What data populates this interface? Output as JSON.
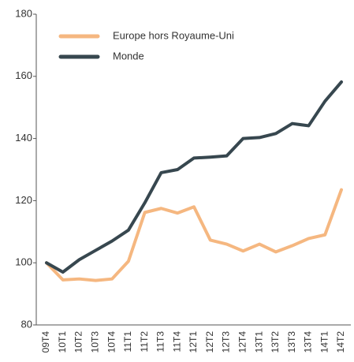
{
  "chart_data": {
    "type": "line",
    "categories": [
      "09T4",
      "10T1",
      "10T2",
      "10T3",
      "10T4",
      "11T1",
      "11T2",
      "11T3",
      "11T4",
      "12T1",
      "12T2",
      "12T3",
      "12T4",
      "13T1",
      "13T2",
      "13T3",
      "13T4",
      "14T1",
      "14T2"
    ],
    "series": [
      {
        "name": "Europe hors Royaume-Uni",
        "color": "#f5b780",
        "values": [
          100,
          94.5,
          94.8,
          94.3,
          94.8,
          100.5,
          116.2,
          117.5,
          116,
          118,
          107.3,
          106,
          103.8,
          106,
          103.5,
          105.5,
          107.8,
          109,
          123.5
        ]
      },
      {
        "name": "Monde",
        "color": "#37474f",
        "values": [
          100,
          97,
          101,
          104,
          107,
          110.5,
          119.3,
          129,
          130,
          133.7,
          134,
          134.4,
          140,
          140.3,
          141.6,
          144.8,
          144.1,
          152,
          158.2
        ]
      }
    ],
    "ylim": [
      80,
      180
    ],
    "yticks": [
      80,
      100,
      120,
      140,
      160,
      180
    ],
    "legend": "upper left"
  }
}
